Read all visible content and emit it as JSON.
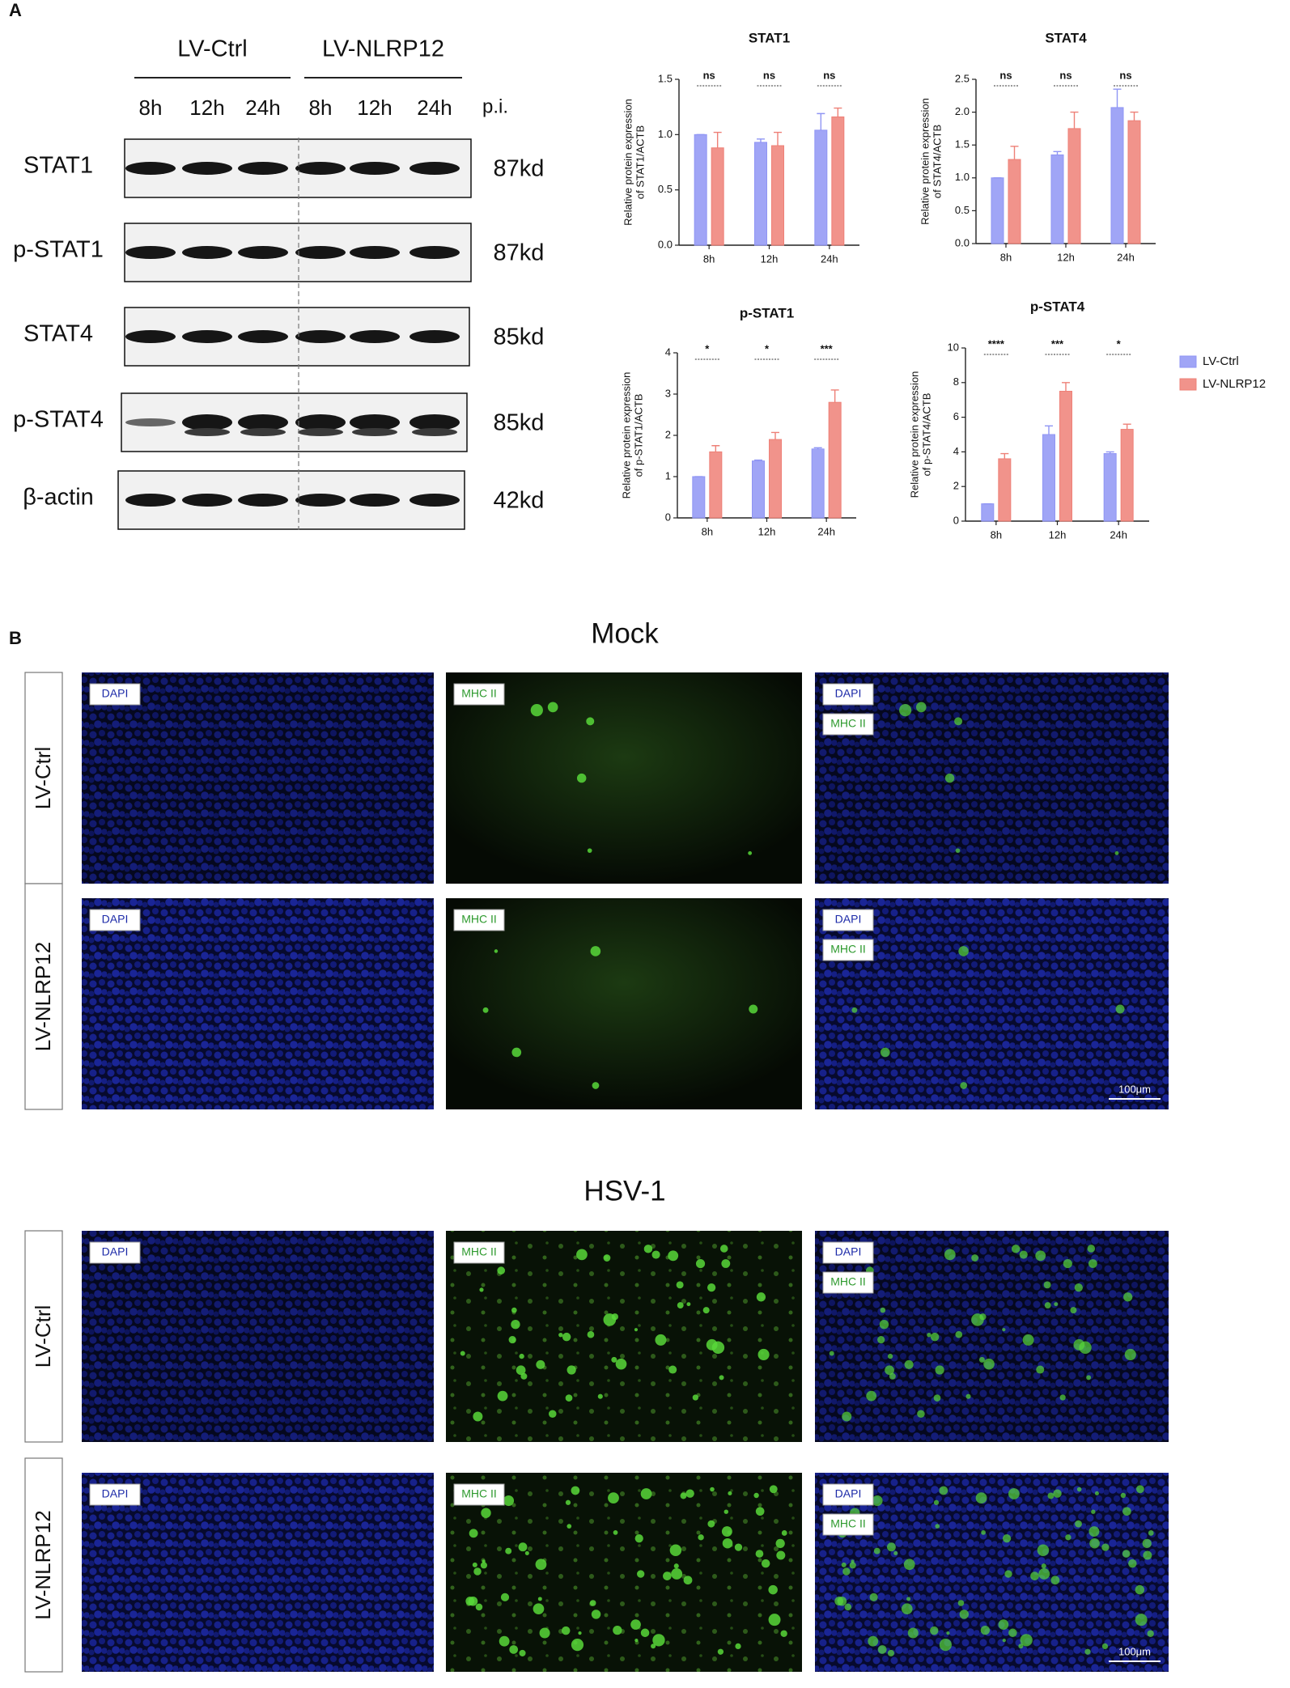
{
  "figure": {
    "panel_a_label": "A",
    "panel_b_label": "B",
    "western_blot": {
      "groups": [
        "LV-Ctrl",
        "LV-NLRP12"
      ],
      "timepoints": [
        "8h",
        "12h",
        "24h",
        "8h",
        "12h",
        "24h"
      ],
      "timepoint_unit": "p.i.",
      "rows": [
        {
          "protein": "STAT1",
          "size": "87kd"
        },
        {
          "protein": "p-STAT1",
          "size": "87kd"
        },
        {
          "protein": "STAT4",
          "size": "85kd"
        },
        {
          "protein": "p-STAT4",
          "size": "85kd"
        },
        {
          "protein": "β-actin",
          "size": "42kd"
        }
      ]
    },
    "microscopy": {
      "conditions": [
        "Mock",
        "HSV-1"
      ],
      "groups": [
        "LV-Ctrl",
        "LV-NLRP12"
      ],
      "channels": [
        "DAPI",
        "MHC II"
      ],
      "scale_bar": "100μm"
    }
  },
  "chart_data": [
    {
      "type": "bar",
      "title": "STAT1",
      "ylabel": [
        "Relative protein expression",
        "of STAT1/ACTB"
      ],
      "categories": [
        "8h",
        "12h",
        "24h"
      ],
      "series": [
        {
          "color": "#8f95f4",
          "values": [
            1.0,
            0.93,
            1.04
          ],
          "errors": [
            0,
            0.03,
            0.15
          ]
        },
        {
          "color": "#ee8077",
          "values": [
            0.88,
            0.9,
            1.16
          ],
          "errors": [
            0.14,
            0.12,
            0.08
          ]
        }
      ],
      "annotations": [
        "ns",
        "ns",
        "ns"
      ],
      "ylim": [
        0,
        1.5
      ],
      "yticks": [
        {
          "value": 0,
          "label": "0.0"
        },
        {
          "value": 0.5,
          "label": "0.5"
        },
        {
          "value": 1,
          "label": "1.0"
        },
        {
          "value": 1.5,
          "label": "1.5"
        }
      ]
    },
    {
      "type": "bar",
      "title": "STAT4",
      "ylabel": [
        "Relative protein expression",
        "of STAT4/ACTB"
      ],
      "categories": [
        "8h",
        "12h",
        "24h"
      ],
      "series": [
        {
          "color": "#8f95f4",
          "values": [
            1.0,
            1.35,
            2.07
          ],
          "errors": [
            0,
            0.05,
            0.28
          ]
        },
        {
          "color": "#ee8077",
          "values": [
            1.28,
            1.75,
            1.87
          ],
          "errors": [
            0.2,
            0.25,
            0.13
          ]
        }
      ],
      "annotations": [
        "ns",
        "ns",
        "ns"
      ],
      "ylim": [
        0,
        2.5
      ],
      "yticks": [
        {
          "value": 0,
          "label": "0.0"
        },
        {
          "value": 0.5,
          "label": "0.5"
        },
        {
          "value": 1,
          "label": "1.0"
        },
        {
          "value": 1.5,
          "label": "1.5"
        },
        {
          "value": 2,
          "label": "2.0"
        },
        {
          "value": 2.5,
          "label": "2.5"
        }
      ]
    },
    {
      "type": "bar",
      "title": "p-STAT1",
      "ylabel": [
        "Relative protein expression",
        "of p-STAT1/ACTB"
      ],
      "categories": [
        "8h",
        "12h",
        "24h"
      ],
      "series": [
        {
          "color": "#8f95f4",
          "values": [
            1.0,
            1.38,
            1.67
          ],
          "errors": [
            0,
            0.02,
            0.03
          ]
        },
        {
          "color": "#ee8077",
          "values": [
            1.6,
            1.9,
            2.8
          ],
          "errors": [
            0.15,
            0.17,
            0.3
          ]
        }
      ],
      "annotations": [
        "*",
        "*",
        "***"
      ],
      "ylim": [
        0,
        4
      ],
      "yticks": [
        0,
        1,
        2,
        3,
        4
      ]
    },
    {
      "type": "bar",
      "title": "p-STAT4",
      "ylabel": [
        "Relative protein expression",
        "of p-STAT4/ACTB"
      ],
      "categories": [
        "8h",
        "12h",
        "24h"
      ],
      "series": [
        {
          "name": "LV-Ctrl",
          "color": "#8f95f4",
          "values": [
            1.0,
            5.0,
            3.9
          ],
          "errors": [
            0,
            0.5,
            0.1
          ]
        },
        {
          "name": "LV-NLRP12",
          "color": "#ee8077",
          "values": [
            3.6,
            7.5,
            5.3
          ],
          "errors": [
            0.3,
            0.5,
            0.3
          ]
        }
      ],
      "annotations": [
        "****",
        "***",
        "*"
      ],
      "ylim": [
        0,
        10
      ],
      "yticks": [
        0,
        2,
        4,
        6,
        8,
        10
      ],
      "legend": "right"
    }
  ]
}
